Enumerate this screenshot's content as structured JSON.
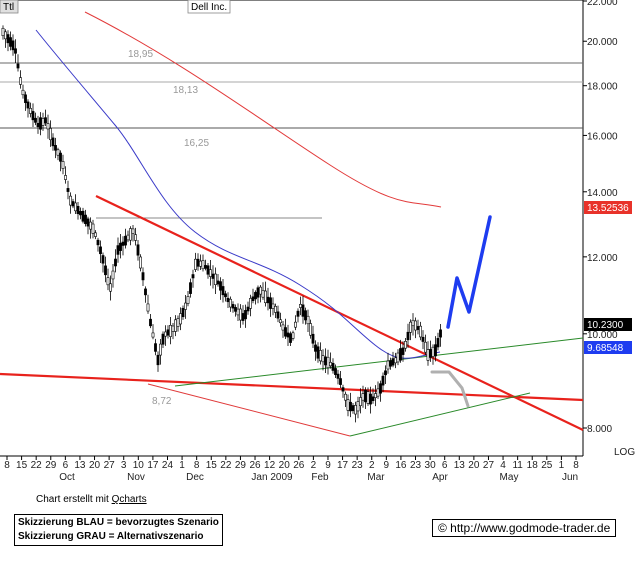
{
  "header": {
    "code": "Ttl",
    "company": "Dell Inc."
  },
  "chart_data": {
    "type": "candlestick",
    "title": "Dell Inc.",
    "ylim": [
      7.3,
      22.0
    ],
    "y_ticks": [
      "8.000",
      "10.000",
      "12.000",
      "14.000",
      "16.000",
      "18.000",
      "20.000",
      "22.000"
    ],
    "y_scale": "log",
    "grid": false,
    "x_date_ticks": [
      "8",
      "15",
      "22",
      "29",
      "6",
      "13",
      "20",
      "27",
      "3",
      "10",
      "17",
      "24",
      "1",
      "8",
      "15",
      "22",
      "29",
      "26",
      "12",
      "20",
      "26",
      "2",
      "9",
      "17",
      "23",
      "2",
      "9",
      "16",
      "23",
      "30",
      "6",
      "13",
      "20",
      "27",
      "4",
      "11",
      "18",
      "25",
      "1",
      "8"
    ],
    "x_month_labels": [
      "Oct",
      "Nov",
      "Dec",
      "Jan 2009",
      "Feb",
      "Mar",
      "Apr",
      "May",
      "Jun"
    ],
    "scale_label": "LOG",
    "horizontal_levels": [
      {
        "value": 18.95,
        "label": "18,95"
      },
      {
        "value": 18.13,
        "label": "18,13"
      },
      {
        "value": 16.25,
        "label": "16,25"
      },
      {
        "value": 8.72,
        "label": "8,72"
      }
    ],
    "price_tags": [
      {
        "value": 13.52536,
        "label": "13.52536",
        "color": "#e8322a"
      },
      {
        "value": 10.23,
        "label": "10.2300",
        "color": "#000000"
      },
      {
        "value": 9.68548,
        "label": "9.68548",
        "color": "#1e3cf0"
      }
    ],
    "series": [
      {
        "name": "",
        "kind": "candles",
        "color": "#000000"
      },
      {
        "name": "",
        "kind": "moving-average",
        "color": "#3a3ac8"
      },
      {
        "name": "",
        "kind": "moving-average",
        "color": "#e23a3a"
      }
    ],
    "scenarios": [
      {
        "label": "Skizzierung BLAU = bevorzugtes Szenario",
        "color": "#1e3cf0"
      },
      {
        "label": "Skizzierung GRAU = Alternativszenario",
        "color": "#aaaaaa"
      }
    ]
  },
  "footer": {
    "made_with": "Chart erstellt mit",
    "tool": "Qcharts",
    "legend_blue": "Skizzierung BLAU = bevorzugtes Szenario",
    "legend_grey": "Skizzierung GRAU = Alternativszenario",
    "credit": "© http://www.godmode-trader.de"
  }
}
